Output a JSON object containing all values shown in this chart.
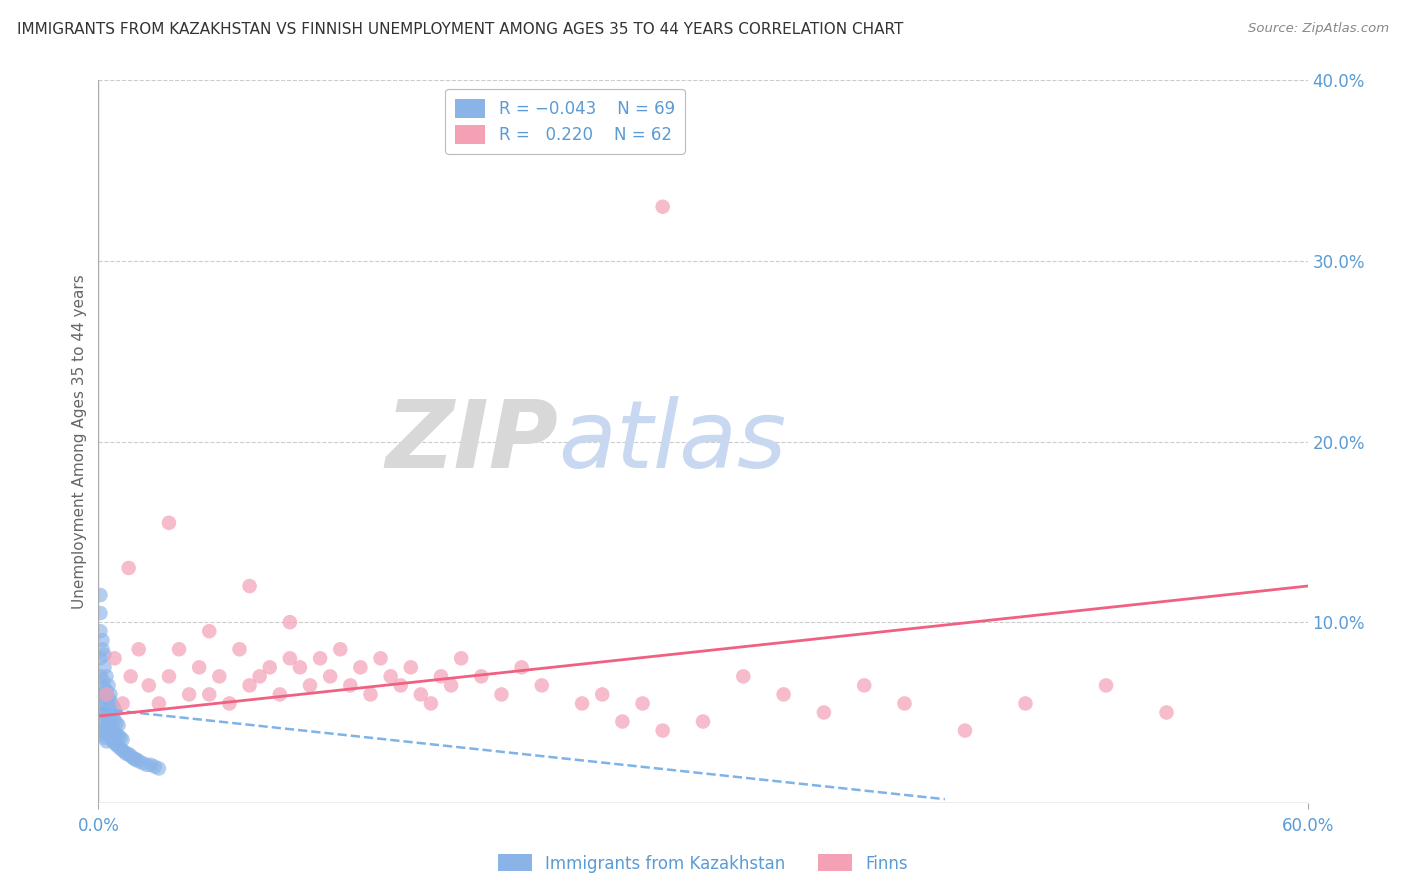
{
  "title": "IMMIGRANTS FROM KAZAKHSTAN VS FINNISH UNEMPLOYMENT AMONG AGES 35 TO 44 YEARS CORRELATION CHART",
  "source": "Source: ZipAtlas.com",
  "ylabel": "Unemployment Among Ages 35 to 44 years",
  "xlim": [
    0.0,
    0.6
  ],
  "ylim": [
    -0.02,
    0.42
  ],
  "plot_ylim": [
    0.0,
    0.4
  ],
  "xticks": [
    0.0,
    0.6
  ],
  "yticks_right": [
    0.1,
    0.2,
    0.3,
    0.4
  ],
  "ytick_labels_right": [
    "10.0%",
    "20.0%",
    "30.0%",
    "40.0%"
  ],
  "xtick_labels": [
    "0.0%",
    "60.0%"
  ],
  "background_color": "#ffffff",
  "grid_color": "#cccccc",
  "axis_color": "#5b9bd5",
  "series1_color": "#8ab4e8",
  "series2_color": "#f4a0b5",
  "trendline1_color": "#7eb3e8",
  "trendline2_color": "#f06080",
  "watermark_zip_color": "#d8d8d8",
  "watermark_atlas_color": "#c8d8f0",
  "blue_dots_x": [
    0.001,
    0.001,
    0.001,
    0.001,
    0.001,
    0.002,
    0.002,
    0.002,
    0.002,
    0.002,
    0.003,
    0.003,
    0.003,
    0.003,
    0.003,
    0.004,
    0.004,
    0.004,
    0.004,
    0.004,
    0.005,
    0.005,
    0.005,
    0.005,
    0.006,
    0.006,
    0.006,
    0.006,
    0.007,
    0.007,
    0.007,
    0.007,
    0.008,
    0.008,
    0.008,
    0.008,
    0.009,
    0.009,
    0.009,
    0.01,
    0.01,
    0.01,
    0.011,
    0.011,
    0.012,
    0.012,
    0.013,
    0.014,
    0.015,
    0.016,
    0.017,
    0.018,
    0.019,
    0.02,
    0.022,
    0.024,
    0.026,
    0.028,
    0.03,
    0.001,
    0.001,
    0.002,
    0.001,
    0.002,
    0.003,
    0.003,
    0.004,
    0.005,
    0.006
  ],
  "blue_dots_y": [
    0.04,
    0.05,
    0.06,
    0.07,
    0.08,
    0.038,
    0.045,
    0.052,
    0.06,
    0.068,
    0.036,
    0.043,
    0.05,
    0.057,
    0.064,
    0.034,
    0.041,
    0.048,
    0.055,
    0.062,
    0.038,
    0.045,
    0.052,
    0.058,
    0.036,
    0.043,
    0.05,
    0.056,
    0.034,
    0.041,
    0.048,
    0.054,
    0.033,
    0.039,
    0.046,
    0.052,
    0.032,
    0.038,
    0.044,
    0.031,
    0.037,
    0.043,
    0.03,
    0.036,
    0.029,
    0.035,
    0.028,
    0.027,
    0.027,
    0.026,
    0.025,
    0.024,
    0.024,
    0.023,
    0.022,
    0.021,
    0.021,
    0.02,
    0.019,
    0.095,
    0.105,
    0.09,
    0.115,
    0.085,
    0.075,
    0.082,
    0.07,
    0.065,
    0.06
  ],
  "pink_dots_x": [
    0.004,
    0.008,
    0.012,
    0.016,
    0.02,
    0.025,
    0.03,
    0.035,
    0.04,
    0.045,
    0.05,
    0.055,
    0.06,
    0.065,
    0.07,
    0.075,
    0.08,
    0.085,
    0.09,
    0.095,
    0.1,
    0.105,
    0.11,
    0.115,
    0.12,
    0.125,
    0.13,
    0.135,
    0.14,
    0.145,
    0.15,
    0.155,
    0.16,
    0.165,
    0.17,
    0.175,
    0.18,
    0.19,
    0.2,
    0.21,
    0.22,
    0.24,
    0.25,
    0.26,
    0.27,
    0.28,
    0.3,
    0.32,
    0.34,
    0.36,
    0.38,
    0.4,
    0.43,
    0.46,
    0.5,
    0.53,
    0.015,
    0.035,
    0.055,
    0.075,
    0.095,
    0.28
  ],
  "pink_dots_y": [
    0.06,
    0.08,
    0.055,
    0.07,
    0.085,
    0.065,
    0.055,
    0.07,
    0.085,
    0.06,
    0.075,
    0.06,
    0.07,
    0.055,
    0.085,
    0.065,
    0.07,
    0.075,
    0.06,
    0.08,
    0.075,
    0.065,
    0.08,
    0.07,
    0.085,
    0.065,
    0.075,
    0.06,
    0.08,
    0.07,
    0.065,
    0.075,
    0.06,
    0.055,
    0.07,
    0.065,
    0.08,
    0.07,
    0.06,
    0.075,
    0.065,
    0.055,
    0.06,
    0.045,
    0.055,
    0.04,
    0.045,
    0.07,
    0.06,
    0.05,
    0.065,
    0.055,
    0.04,
    0.055,
    0.065,
    0.05,
    0.13,
    0.155,
    0.095,
    0.12,
    0.1,
    0.33
  ],
  "trendline1_x": [
    0.001,
    0.42
  ],
  "trendline1_y": [
    0.052,
    0.002
  ],
  "trendline2_x": [
    0.0,
    0.6
  ],
  "trendline2_y": [
    0.048,
    0.12
  ]
}
